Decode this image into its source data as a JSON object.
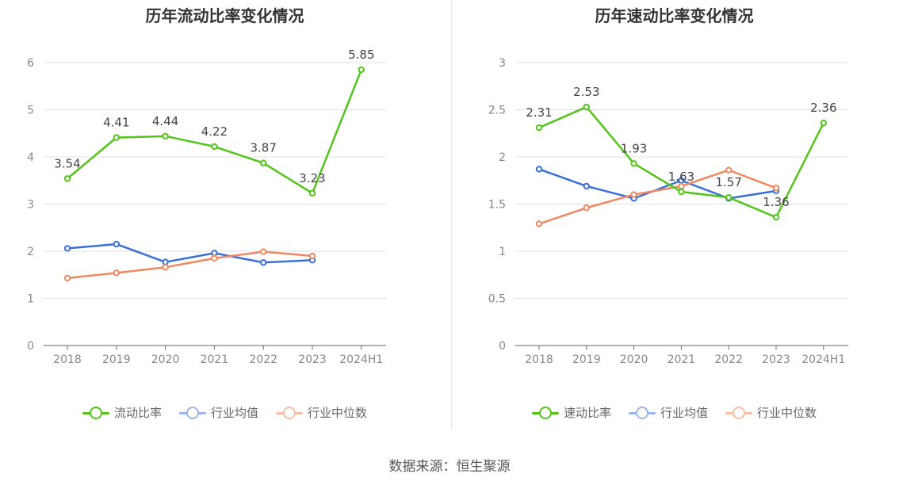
{
  "source": "数据来源：恒生聚源",
  "charts": [
    {
      "title": "历年流动比率变化情况",
      "legend": [
        "流动比率",
        "行业均值",
        "行业中位数"
      ]
    },
    {
      "title": "历年速动比率变化情况",
      "legend": [
        "速动比率",
        "行业均值",
        "行业中位数"
      ]
    }
  ],
  "chart_data": [
    {
      "type": "line",
      "title": "历年流动比率变化情况",
      "categories": [
        "2018",
        "2019",
        "2020",
        "2021",
        "2022",
        "2023",
        "2024H1"
      ],
      "ylim": [
        0,
        6
      ],
      "yticks": [
        "0",
        "1",
        "2",
        "3",
        "4",
        "5",
        "6"
      ],
      "grid": true,
      "legend_position": "bottom",
      "series": [
        {
          "name": "流动比率",
          "color": "#52c41a",
          "values": [
            3.54,
            4.41,
            4.44,
            4.22,
            3.87,
            3.23,
            5.85
          ],
          "labels": [
            "3.54",
            "4.41",
            "4.44",
            "4.22",
            "3.87",
            "3.23",
            "5.85"
          ]
        },
        {
          "name": "行业均值",
          "color": "#3b6fd8",
          "values": [
            2.06,
            2.15,
            1.77,
            1.96,
            1.76,
            1.81,
            null
          ]
        },
        {
          "name": "行业中位数",
          "color": "#f08860",
          "values": [
            1.43,
            1.54,
            1.66,
            1.85,
            1.99,
            1.9,
            null
          ]
        }
      ]
    },
    {
      "type": "line",
      "title": "历年速动比率变化情况",
      "categories": [
        "2018",
        "2019",
        "2020",
        "2021",
        "2022",
        "2023",
        "2024H1"
      ],
      "ylim": [
        0,
        3
      ],
      "yticks": [
        "0",
        "0.5",
        "1",
        "1.5",
        "2",
        "2.5",
        "3"
      ],
      "grid": true,
      "legend_position": "bottom",
      "series": [
        {
          "name": "速动比率",
          "color": "#52c41a",
          "values": [
            2.31,
            2.53,
            1.93,
            1.63,
            1.57,
            1.36,
            2.36
          ],
          "labels": [
            "2.31",
            "2.53",
            "1.93",
            "1.63",
            "1.57",
            "1.36",
            "2.36"
          ]
        },
        {
          "name": "行业均值",
          "color": "#3b6fd8",
          "values": [
            1.87,
            1.69,
            1.56,
            1.75,
            1.56,
            1.64,
            null
          ]
        },
        {
          "name": "行业中位数",
          "color": "#f08860",
          "values": [
            1.29,
            1.46,
            1.6,
            1.69,
            1.86,
            1.67,
            null
          ]
        }
      ]
    }
  ]
}
